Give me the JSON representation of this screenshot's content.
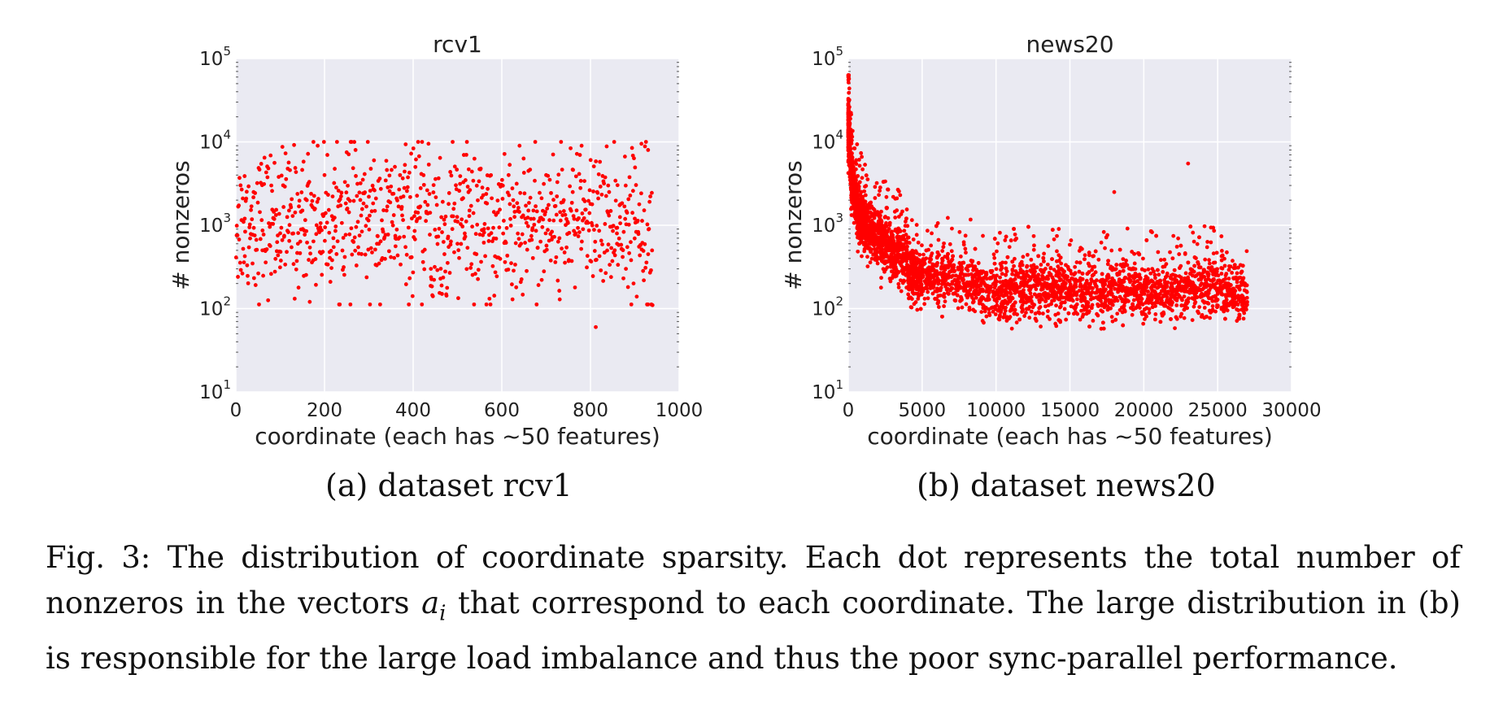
{
  "chart_data": [
    {
      "type": "scatter",
      "title": "rcv1",
      "xlabel": "coordinate (each has ~50 features)",
      "ylabel": "# nonzeros",
      "xlim": [
        0,
        1000
      ],
      "ylim": [
        10,
        100000
      ],
      "yscale": "log",
      "xticks": [
        "0",
        "200",
        "400",
        "600",
        "800",
        "1000"
      ],
      "yticks": [
        {
          "base": "10",
          "exp": "1"
        },
        {
          "base": "10",
          "exp": "2"
        },
        {
          "base": "10",
          "exp": "3"
        },
        {
          "base": "10",
          "exp": "4"
        },
        {
          "base": "10",
          "exp": "5"
        }
      ],
      "grid": true,
      "marker_color": "#ff0000",
      "background": "#eaeaf2",
      "series_description": "about 950 points spread uniformly over x in [0, 940], y mostly between 120 and 10000 (log-uniform around 1000)",
      "points": [
        [
          20,
          1200
        ],
        [
          40,
          2500
        ],
        [
          60,
          500
        ],
        [
          80,
          3000
        ],
        [
          100,
          800
        ],
        [
          120,
          1500
        ],
        [
          140,
          600
        ],
        [
          160,
          2000
        ],
        [
          175,
          10000
        ],
        [
          200,
          4000
        ],
        [
          220,
          700
        ],
        [
          250,
          7500
        ],
        [
          270,
          8000
        ],
        [
          300,
          2200
        ],
        [
          340,
          1500
        ],
        [
          360,
          700
        ],
        [
          380,
          2800
        ],
        [
          405,
          5000
        ],
        [
          440,
          300
        ],
        [
          465,
          150
        ],
        [
          480,
          1800
        ],
        [
          500,
          600
        ],
        [
          520,
          7000
        ],
        [
          560,
          900
        ],
        [
          600,
          3000
        ],
        [
          640,
          9000
        ],
        [
          660,
          1500
        ],
        [
          700,
          4000
        ],
        [
          730,
          700
        ],
        [
          760,
          2500
        ],
        [
          780,
          9000
        ],
        [
          800,
          1800
        ],
        [
          812,
          60
        ],
        [
          840,
          3000
        ],
        [
          860,
          600
        ],
        [
          880,
          300
        ],
        [
          900,
          1200
        ],
        [
          915,
          9500
        ],
        [
          930,
          8000
        ],
        [
          940,
          110
        ]
      ]
    },
    {
      "type": "scatter",
      "title": "news20",
      "xlabel": "coordinate (each has ~50 features)",
      "ylabel": "# nonzeros",
      "xlim": [
        0,
        30000
      ],
      "ylim": [
        10,
        100000
      ],
      "yscale": "log",
      "xticks": [
        "0",
        "5000",
        "10000",
        "15000",
        "20000",
        "25000",
        "30000"
      ],
      "yticks": [
        {
          "base": "10",
          "exp": "1"
        },
        {
          "base": "10",
          "exp": "2"
        },
        {
          "base": "10",
          "exp": "3"
        },
        {
          "base": "10",
          "exp": "4"
        },
        {
          "base": "10",
          "exp": "5"
        }
      ],
      "grid": true,
      "marker_color": "#ff0000",
      "background": "#eaeaf2",
      "series_description": "about 27000 points over x in [0, 27000]; values near 60000 at x=0 decaying to a dense band around 150 (range 50 to 800) beyond x=5000",
      "points": [
        [
          0,
          60000
        ],
        [
          50,
          20000
        ],
        [
          100,
          8000
        ],
        [
          300,
          4000
        ],
        [
          600,
          2500
        ],
        [
          1000,
          1800
        ],
        [
          2000,
          900
        ],
        [
          3500,
          600
        ],
        [
          5000,
          300
        ],
        [
          8000,
          200
        ],
        [
          10000,
          150
        ],
        [
          15000,
          180
        ],
        [
          18000,
          2500
        ],
        [
          20000,
          160
        ],
        [
          23000,
          5500
        ],
        [
          25000,
          150
        ],
        [
          27000,
          120
        ]
      ]
    }
  ],
  "subcaptions": {
    "a": "(a) dataset rcv1",
    "b": "(b) dataset news20"
  },
  "caption": {
    "part1": "Fig. 3: The distribution of coordinate sparsity. Each dot represents the total number of nonzeros in the vectors ",
    "math_base": "a",
    "math_sub": "i",
    "part2": " that correspond to each coordinate. The large distribution in (b) is responsible for the large load imbalance and thus the poor sync-parallel performance."
  }
}
